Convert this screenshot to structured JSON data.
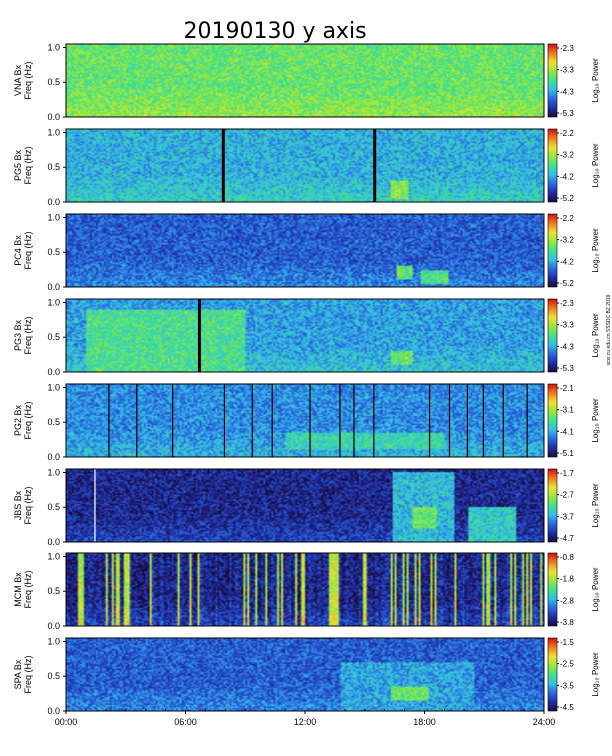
{
  "chart_data": {
    "type": "heatmap",
    "title": "20190130  y axis",
    "xlabel": "",
    "x_ticks": [
      "00:00",
      "06:00",
      "12:00",
      "18:00",
      "24:00"
    ],
    "x_range_hours": [
      0,
      24
    ],
    "y_ticks": [
      "0.0",
      "0.5",
      "1.0"
    ],
    "y_range_hz": [
      0,
      1.05
    ],
    "colorbar_label": "Log₁₀ Power",
    "colormap": [
      "#1a0a3a",
      "#1f2fa8",
      "#2a6ae0",
      "#35c0e8",
      "#3fe08a",
      "#9ae83a",
      "#f0e030",
      "#f07a20",
      "#d01010"
    ],
    "credit": "scsr.cu.edu.cn SSSDC BZ 2019",
    "panels": [
      {
        "station": "VNA Bx",
        "freq_label": "Freq (Hz)",
        "colorbar_ticks": [
          "-2.3",
          "-3.3",
          "-4.3",
          "-5.3"
        ],
        "base_level": 0.55,
        "gaps_hours": [],
        "enhancements": []
      },
      {
        "station": "PG5 Bx",
        "freq_label": "Freq (Hz)",
        "colorbar_ticks": [
          "-2.2",
          "-3.2",
          "-4.2",
          "-5.2"
        ],
        "base_level": 0.36,
        "gaps_hours": [
          7.9,
          15.5
        ],
        "enhancements": [
          {
            "t_start": 16.3,
            "t_end": 17.2,
            "f_low": 0.05,
            "f_high": 0.3,
            "level": 0.6
          }
        ]
      },
      {
        "station": "PC4 Bx",
        "freq_label": "Freq (Hz)",
        "colorbar_ticks": [
          "-2.2",
          "-3.2",
          "-4.2",
          "-5.2"
        ],
        "base_level": 0.22,
        "gaps_hours": [],
        "enhancements": [
          {
            "t_start": 16.6,
            "t_end": 17.4,
            "f_low": 0.1,
            "f_high": 0.3,
            "level": 0.55
          },
          {
            "t_start": 17.8,
            "t_end": 19.2,
            "f_low": 0.05,
            "f_high": 0.25,
            "level": 0.5
          }
        ]
      },
      {
        "station": "PG3 Bx",
        "freq_label": "Freq (Hz)",
        "colorbar_ticks": [
          "-2.3",
          "-3.3",
          "-4.3",
          "-5.3"
        ],
        "base_level": 0.33,
        "gaps_hours": [
          6.7
        ],
        "enhancements": [
          {
            "t_start": 1.0,
            "t_end": 9.0,
            "f_low": 0.0,
            "f_high": 0.9,
            "level": 0.5
          },
          {
            "t_start": 16.3,
            "t_end": 17.4,
            "f_low": 0.1,
            "f_high": 0.3,
            "level": 0.55
          }
        ]
      },
      {
        "station": "PG2 Bx",
        "freq_label": "Freq (Hz)",
        "colorbar_ticks": [
          "-2.1",
          "-3.1",
          "-4.1",
          "-5.1"
        ],
        "base_level": 0.3,
        "gaps_hours": [
          2.2,
          3.6,
          5.4,
          8.0,
          9.4,
          10.4,
          12.3,
          13.8,
          14.5,
          15.5,
          18.3,
          19.3,
          20.2,
          21.0,
          22.0,
          23.2
        ],
        "enhancements": [
          {
            "t_start": 11.0,
            "t_end": 19.0,
            "f_low": 0.1,
            "f_high": 0.35,
            "level": 0.45
          }
        ]
      },
      {
        "station": "JBS Bx",
        "freq_label": "Freq (Hz)",
        "colorbar_ticks": [
          "-1.7",
          "-2.7",
          "-3.7",
          "-4.7"
        ],
        "base_level": 0.1,
        "gaps_hours": [
          1.5
        ],
        "enhancements": [
          {
            "t_start": 16.4,
            "t_end": 19.5,
            "f_low": 0.0,
            "f_high": 1.0,
            "level": 0.38
          },
          {
            "t_start": 17.4,
            "t_end": 18.6,
            "f_low": 0.2,
            "f_high": 0.5,
            "level": 0.55
          },
          {
            "t_start": 20.2,
            "t_end": 22.6,
            "f_low": 0.0,
            "f_high": 0.5,
            "level": 0.42
          }
        ]
      },
      {
        "station": "MCM Bx",
        "freq_label": "Freq (Hz)",
        "colorbar_ticks": [
          "-0.8",
          "-1.8",
          "-2.8",
          "-3.8"
        ],
        "base_level": 0.06,
        "gaps_hours": [],
        "enhancements": []
      },
      {
        "station": "SPA Bx",
        "freq_label": "Freq (Hz)",
        "colorbar_ticks": [
          "-1.5",
          "-2.5",
          "-3.5",
          "-4.5"
        ],
        "base_level": 0.22,
        "gaps_hours": [],
        "enhancements": [
          {
            "t_start": 13.8,
            "t_end": 20.5,
            "f_low": 0.0,
            "f_high": 0.7,
            "level": 0.34
          },
          {
            "t_start": 16.3,
            "t_end": 18.2,
            "f_low": 0.15,
            "f_high": 0.35,
            "level": 0.55
          }
        ]
      }
    ]
  }
}
